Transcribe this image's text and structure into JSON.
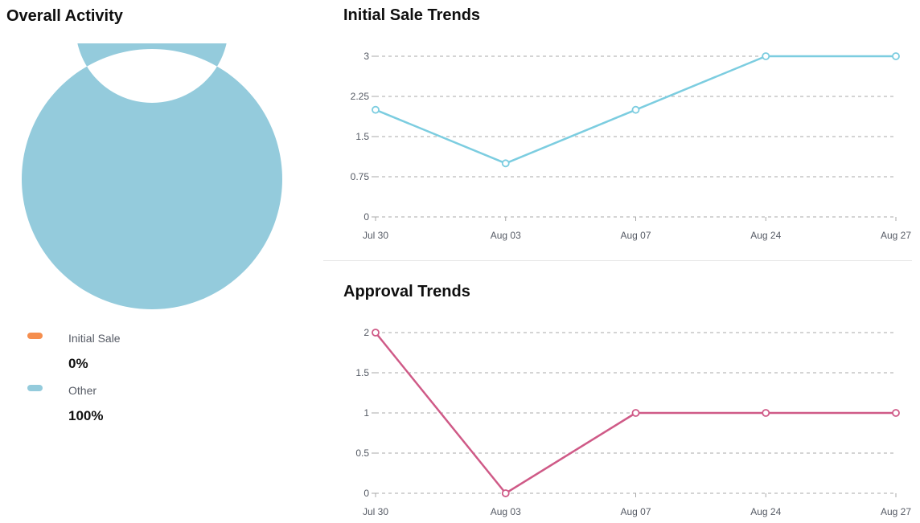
{
  "donut": {
    "title": "Overall Activity",
    "legend": [
      {
        "label": "Initial Sale",
        "value_text": "0%",
        "color": "#f58e4e"
      },
      {
        "label": "Other",
        "value_text": "100%",
        "color": "#94cbdc"
      }
    ]
  },
  "sale_chart": {
    "title": "Initial Sale Trends"
  },
  "approval_chart": {
    "title": "Approval Trends"
  },
  "chart_data": [
    {
      "type": "pie",
      "title": "Overall Activity",
      "labels": [
        "Initial Sale",
        "Other"
      ],
      "values": [
        0,
        100
      ],
      "colors": [
        "#f58e4e",
        "#94cbdc"
      ],
      "donut": true
    },
    {
      "type": "line",
      "title": "Initial Sale Trends",
      "categories": [
        "Jul 30",
        "Aug 03",
        "Aug 07",
        "Aug 24",
        "Aug 27"
      ],
      "series": [
        {
          "values": [
            2,
            1,
            2,
            3,
            3
          ],
          "color": "#7ccde0"
        }
      ],
      "yticks": [
        "0",
        "0.75",
        "1.5",
        "2.25",
        "3"
      ],
      "ylim": [
        0,
        3
      ],
      "grid": true
    },
    {
      "type": "line",
      "title": "Approval Trends",
      "categories": [
        "Jul 30",
        "Aug 03",
        "Aug 07",
        "Aug 24",
        "Aug 27"
      ],
      "series": [
        {
          "values": [
            2,
            0,
            1,
            1,
            1
          ],
          "color": "#cf5a87"
        }
      ],
      "yticks": [
        "0",
        "0.5",
        "1",
        "1.5",
        "2"
      ],
      "ylim": [
        0,
        2
      ],
      "grid": true
    }
  ]
}
